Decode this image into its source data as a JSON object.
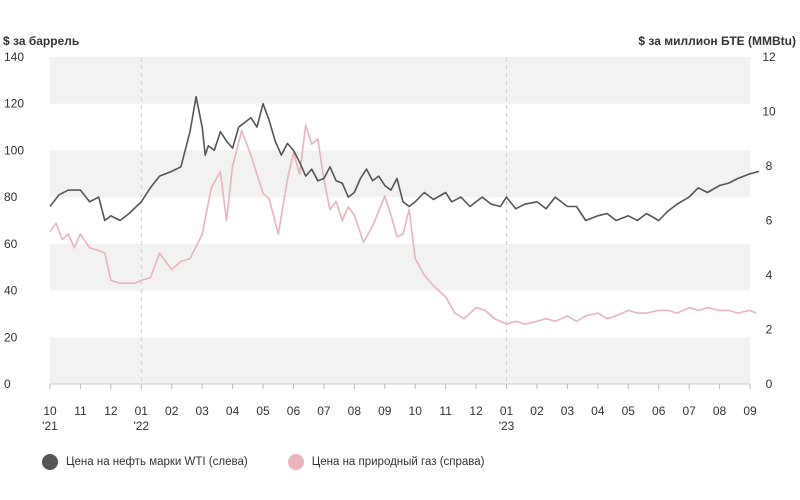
{
  "chart_data": {
    "type": "line",
    "y_left_title": "$ за баррель",
    "y_right_title": "$ за миллион БТЕ (MMBtu)",
    "y_left_ticks": [
      "0",
      "20",
      "40",
      "60",
      "80",
      "100",
      "120",
      "140"
    ],
    "y_right_ticks": [
      "0",
      "2",
      "4",
      "6",
      "8",
      "10",
      "12"
    ],
    "ylim_left": [
      0,
      140
    ],
    "ylim_right": [
      0,
      12
    ],
    "x_ticks": [
      {
        "month": "10",
        "year": "'21"
      },
      {
        "month": "11",
        "year": ""
      },
      {
        "month": "12",
        "year": ""
      },
      {
        "month": "01",
        "year": "'22"
      },
      {
        "month": "02",
        "year": ""
      },
      {
        "month": "03",
        "year": ""
      },
      {
        "month": "04",
        "year": ""
      },
      {
        "month": "05",
        "year": ""
      },
      {
        "month": "06",
        "year": ""
      },
      {
        "month": "07",
        "year": ""
      },
      {
        "month": "08",
        "year": ""
      },
      {
        "month": "09",
        "year": ""
      },
      {
        "month": "10",
        "year": ""
      },
      {
        "month": "11",
        "year": ""
      },
      {
        "month": "12",
        "year": ""
      },
      {
        "month": "01",
        "year": "'23"
      },
      {
        "month": "02",
        "year": ""
      },
      {
        "month": "03",
        "year": ""
      },
      {
        "month": "04",
        "year": ""
      },
      {
        "month": "05",
        "year": ""
      },
      {
        "month": "06",
        "year": ""
      },
      {
        "month": "07",
        "year": ""
      },
      {
        "month": "08",
        "year": ""
      },
      {
        "month": "09",
        "year": ""
      }
    ],
    "year_dividers": [
      3,
      15
    ],
    "grid": "alternating horizontal bands",
    "legend_position": "bottom-left",
    "series": [
      {
        "name": "Цена на нефть марки WTI (слева)",
        "axis": "left",
        "color": "#555555",
        "x": [
          0,
          0.3,
          0.6,
          1,
          1.3,
          1.6,
          1.8,
          2,
          2.3,
          2.6,
          3,
          3.3,
          3.6,
          4,
          4.3,
          4.6,
          4.8,
          5,
          5.1,
          5.2,
          5.4,
          5.6,
          5.8,
          6,
          6.2,
          6.4,
          6.6,
          6.8,
          7,
          7.2,
          7.4,
          7.6,
          7.8,
          8,
          8.2,
          8.4,
          8.6,
          8.8,
          9,
          9.2,
          9.4,
          9.6,
          9.8,
          10,
          10.2,
          10.4,
          10.6,
          10.8,
          11,
          11.2,
          11.4,
          11.6,
          11.8,
          12,
          12.3,
          12.6,
          13,
          13.2,
          13.5,
          13.8,
          14,
          14.2,
          14.5,
          14.8,
          15,
          15.3,
          15.6,
          16,
          16.3,
          16.6,
          17,
          17.3,
          17.6,
          18,
          18.3,
          18.6,
          19,
          19.3,
          19.6,
          20,
          20.3,
          20.6,
          21,
          21.3,
          21.6,
          22,
          22.3,
          22.6,
          23,
          23.3
        ],
        "values": [
          76,
          81,
          83,
          83,
          78,
          80,
          70,
          72,
          70,
          73,
          78,
          84,
          89,
          91,
          93,
          108,
          123,
          110,
          98,
          102,
          100,
          108,
          104,
          101,
          110,
          112,
          114,
          110,
          120,
          113,
          104,
          98,
          103,
          100,
          95,
          89,
          92,
          87,
          88,
          93,
          87,
          86,
          80,
          82,
          88,
          92,
          87,
          89,
          85,
          83,
          88,
          78,
          76,
          78,
          82,
          79,
          82,
          78,
          80,
          76,
          78,
          80,
          77,
          76,
          80,
          75,
          77,
          78,
          75,
          80,
          76,
          76,
          70,
          72,
          73,
          70,
          72,
          70,
          73,
          70,
          74,
          77,
          80,
          84,
          82,
          85,
          86,
          88,
          90,
          91
        ]
      },
      {
        "name": "Цена на природный газ (справа)",
        "axis": "right",
        "color": "#e9b4bb",
        "x": [
          0,
          0.2,
          0.4,
          0.6,
          0.8,
          1,
          1.3,
          1.6,
          1.8,
          2,
          2.3,
          2.6,
          2.8,
          3,
          3.3,
          3.6,
          4,
          4.3,
          4.6,
          5,
          5.3,
          5.6,
          5.8,
          6,
          6.3,
          6.6,
          7,
          7.2,
          7.5,
          7.8,
          8,
          8.2,
          8.4,
          8.6,
          8.8,
          9,
          9.2,
          9.4,
          9.6,
          9.8,
          10,
          10.3,
          10.6,
          11,
          11.2,
          11.4,
          11.6,
          11.8,
          12,
          12.3,
          12.6,
          13,
          13.3,
          13.6,
          14,
          14.3,
          14.6,
          15,
          15.3,
          15.6,
          16,
          16.3,
          16.6,
          17,
          17.3,
          17.6,
          18,
          18.3,
          18.6,
          19,
          19.3,
          19.6,
          20,
          20.3,
          20.6,
          21,
          21.3,
          21.6,
          22,
          22.3,
          22.6,
          23,
          23.2
        ],
        "values": [
          5.6,
          5.9,
          5.3,
          5.5,
          5.0,
          5.5,
          5.0,
          4.9,
          4.8,
          3.8,
          3.7,
          3.7,
          3.7,
          3.8,
          3.9,
          4.8,
          4.2,
          4.5,
          4.6,
          5.5,
          7.2,
          7.8,
          6.0,
          8.0,
          9.3,
          8.4,
          7.0,
          6.8,
          5.5,
          7.5,
          8.5,
          7.7,
          9.5,
          8.8,
          9.0,
          7.5,
          6.4,
          6.7,
          6.0,
          6.5,
          6.2,
          5.2,
          5.8,
          6.9,
          6.2,
          5.4,
          5.5,
          6.4,
          4.6,
          4.0,
          3.6,
          3.2,
          2.6,
          2.4,
          2.8,
          2.7,
          2.4,
          2.2,
          2.3,
          2.2,
          2.3,
          2.4,
          2.3,
          2.5,
          2.3,
          2.5,
          2.6,
          2.4,
          2.5,
          2.7,
          2.6,
          2.6,
          2.7,
          2.7,
          2.6,
          2.8,
          2.7,
          2.8,
          2.7,
          2.7,
          2.6,
          2.7,
          2.6
        ]
      }
    ]
  }
}
